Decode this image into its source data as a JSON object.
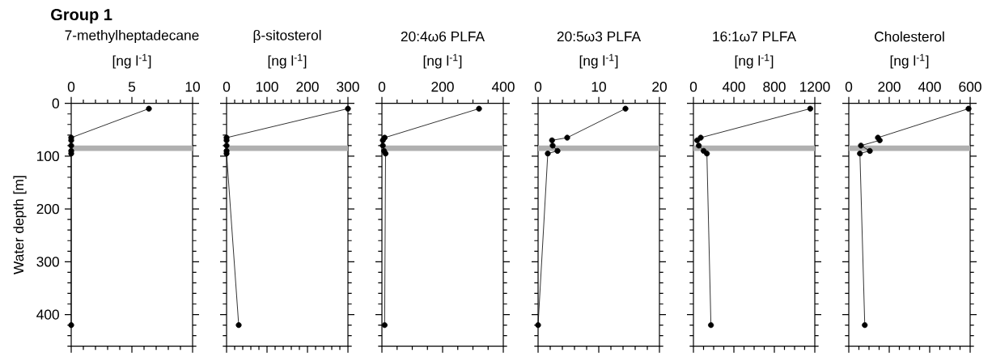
{
  "chart_data": [
    {
      "type": "line",
      "title": "7-methylheptadecane",
      "xlabel": "[ng l$^{-1}$]",
      "ylabel": "Water depth [m]",
      "annotations": [
        "**Group 1**"
      ],
      "marker": "circle",
      "series": [
        {
          "color": "#000000",
          "x": [
            6.4,
            0,
            0,
            0,
            0,
            0,
            0
          ],
          "values": [
            10,
            65,
            70,
            80,
            90,
            95,
            420
          ]
        }
      ],
      "xlim": [
        0,
        10
      ],
      "xticks": [
        0,
        {
          "value": 1,
          "label": null
        },
        {
          "value": 2,
          "label": null
        },
        {
          "value": 3,
          "label": null
        },
        {
          "value": 4,
          "label": null
        },
        5,
        {
          "value": 6,
          "label": null
        },
        {
          "value": 7,
          "label": null
        },
        {
          "value": 8,
          "label": null
        },
        {
          "value": 9,
          "label": null
        },
        10
      ],
      "ylim": [
        460,
        0
      ],
      "yticks": [
        0,
        {
          "value": 20,
          "label": null
        },
        {
          "value": 40,
          "label": null
        },
        {
          "value": 60,
          "label": null
        },
        {
          "value": 80,
          "label": null
        },
        100,
        {
          "value": 120,
          "label": null
        },
        {
          "value": 140,
          "label": null
        },
        {
          "value": 160,
          "label": null
        },
        {
          "value": 180,
          "label": null
        },
        200,
        {
          "value": 220,
          "label": null
        },
        {
          "value": 240,
          "label": null
        },
        {
          "value": 260,
          "label": null
        },
        {
          "value": 280,
          "label": null
        },
        300,
        {
          "value": 320,
          "label": null
        },
        {
          "value": 340,
          "label": null
        },
        {
          "value": 360,
          "label": null
        },
        {
          "value": 380,
          "label": null
        },
        400,
        {
          "value": 420,
          "label": null
        },
        {
          "value": 440,
          "label": null
        },
        {
          "value": 460,
          "label": null
        }
      ],
      "bands": [
        {
          "axis": "y",
          "from": 80,
          "to": 90,
          "color": "#b0b0b0"
        }
      ]
    },
    {
      "type": "line",
      "title": "β-sitosterol",
      "xlabel": "[ng l$^{-1}$]",
      "marker": "circle",
      "tick_labels": "x",
      "series": [
        {
          "color": "#000000",
          "x": [
            300,
            0,
            0,
            0,
            0,
            0,
            30
          ],
          "values": [
            10,
            65,
            70,
            80,
            90,
            95,
            420
          ]
        }
      ],
      "xlim": [
        0,
        300
      ],
      "xticks": [
        0,
        {
          "value": 20,
          "label": null
        },
        {
          "value": 40,
          "label": null
        },
        {
          "value": 60,
          "label": null
        },
        {
          "value": 80,
          "label": null
        },
        100,
        {
          "value": 120,
          "label": null
        },
        {
          "value": 140,
          "label": null
        },
        {
          "value": 160,
          "label": null
        },
        {
          "value": 180,
          "label": null
        },
        200,
        {
          "value": 220,
          "label": null
        },
        {
          "value": 240,
          "label": null
        },
        {
          "value": 260,
          "label": null
        },
        {
          "value": 280,
          "label": null
        },
        300
      ],
      "ylim": [
        460,
        0
      ],
      "yticks": [
        0,
        {
          "value": 20,
          "label": null
        },
        {
          "value": 40,
          "label": null
        },
        {
          "value": 60,
          "label": null
        },
        {
          "value": 80,
          "label": null
        },
        100,
        {
          "value": 120,
          "label": null
        },
        {
          "value": 140,
          "label": null
        },
        {
          "value": 160,
          "label": null
        },
        {
          "value": 180,
          "label": null
        },
        200,
        {
          "value": 220,
          "label": null
        },
        {
          "value": 240,
          "label": null
        },
        {
          "value": 260,
          "label": null
        },
        {
          "value": 280,
          "label": null
        },
        300,
        {
          "value": 320,
          "label": null
        },
        {
          "value": 340,
          "label": null
        },
        {
          "value": 360,
          "label": null
        },
        {
          "value": 380,
          "label": null
        },
        400,
        {
          "value": 420,
          "label": null
        },
        {
          "value": 440,
          "label": null
        },
        {
          "value": 460,
          "label": null
        }
      ],
      "bands": [
        {
          "axis": "y",
          "from": 80,
          "to": 90,
          "color": "#b0b0b0"
        }
      ]
    },
    {
      "type": "line",
      "title": "20:4ω6 PLFA",
      "xlabel": "[ng l$^{-1}$]",
      "marker": "circle",
      "tick_labels": "x",
      "series": [
        {
          "color": "#000000",
          "x": [
            320,
            9,
            3,
            3,
            7,
            12,
            9
          ],
          "values": [
            10,
            65,
            70,
            80,
            90,
            95,
            420
          ]
        }
      ],
      "xlim": [
        0,
        400
      ],
      "xticks": [
        0,
        {
          "value": 50,
          "label": null
        },
        {
          "value": 100,
          "label": null
        },
        {
          "value": 150,
          "label": null
        },
        200,
        {
          "value": 250,
          "label": null
        },
        {
          "value": 300,
          "label": null
        },
        {
          "value": 350,
          "label": null
        },
        400
      ],
      "ylim": [
        460,
        0
      ],
      "yticks": [
        0,
        {
          "value": 20,
          "label": null
        },
        {
          "value": 40,
          "label": null
        },
        {
          "value": 60,
          "label": null
        },
        {
          "value": 80,
          "label": null
        },
        100,
        {
          "value": 120,
          "label": null
        },
        {
          "value": 140,
          "label": null
        },
        {
          "value": 160,
          "label": null
        },
        {
          "value": 180,
          "label": null
        },
        200,
        {
          "value": 220,
          "label": null
        },
        {
          "value": 240,
          "label": null
        },
        {
          "value": 260,
          "label": null
        },
        {
          "value": 280,
          "label": null
        },
        300,
        {
          "value": 320,
          "label": null
        },
        {
          "value": 340,
          "label": null
        },
        {
          "value": 360,
          "label": null
        },
        {
          "value": 380,
          "label": null
        },
        400,
        {
          "value": 420,
          "label": null
        },
        {
          "value": 440,
          "label": null
        },
        {
          "value": 460,
          "label": null
        }
      ],
      "bands": [
        {
          "axis": "y",
          "from": 80,
          "to": 90,
          "color": "#b0b0b0"
        }
      ]
    },
    {
      "type": "line",
      "title": "20:5ω3 PLFA",
      "xlabel": "[ng l$^{-1}$]",
      "marker": "circle",
      "tick_labels": "x",
      "series": [
        {
          "color": "#000000",
          "x": [
            14.4,
            4.8,
            2.3,
            2.4,
            3.2,
            1.6,
            0
          ],
          "values": [
            10,
            65,
            70,
            80,
            90,
            95,
            420
          ]
        }
      ],
      "xlim": [
        0,
        20
      ],
      "xticks": [
        0,
        {
          "value": 2,
          "label": null
        },
        {
          "value": 4,
          "label": null
        },
        {
          "value": 6,
          "label": null
        },
        {
          "value": 8,
          "label": null
        },
        10,
        {
          "value": 12,
          "label": null
        },
        {
          "value": 14,
          "label": null
        },
        {
          "value": 16,
          "label": null
        },
        {
          "value": 18,
          "label": null
        },
        20
      ],
      "ylim": [
        460,
        0
      ],
      "yticks": [
        0,
        {
          "value": 20,
          "label": null
        },
        {
          "value": 40,
          "label": null
        },
        {
          "value": 60,
          "label": null
        },
        {
          "value": 80,
          "label": null
        },
        100,
        {
          "value": 120,
          "label": null
        },
        {
          "value": 140,
          "label": null
        },
        {
          "value": 160,
          "label": null
        },
        {
          "value": 180,
          "label": null
        },
        200,
        {
          "value": 220,
          "label": null
        },
        {
          "value": 240,
          "label": null
        },
        {
          "value": 260,
          "label": null
        },
        {
          "value": 280,
          "label": null
        },
        300,
        {
          "value": 320,
          "label": null
        },
        {
          "value": 340,
          "label": null
        },
        {
          "value": 360,
          "label": null
        },
        {
          "value": 380,
          "label": null
        },
        400,
        {
          "value": 420,
          "label": null
        },
        {
          "value": 440,
          "label": null
        },
        {
          "value": 460,
          "label": null
        }
      ],
      "bands": [
        {
          "axis": "y",
          "from": 80,
          "to": 90,
          "color": "#b0b0b0"
        }
      ]
    },
    {
      "type": "line",
      "title": "16:1ω7 PLFA",
      "xlabel": "[ng l$^{-1}$]",
      "marker": "circle",
      "tick_labels": "x",
      "series": [
        {
          "color": "#000000",
          "x": [
            1155,
            72,
            37,
            53,
            101,
            133,
            173
          ],
          "values": [
            10,
            65,
            70,
            80,
            90,
            95,
            420
          ]
        }
      ],
      "xlim": [
        0,
        1200
      ],
      "xticks": [
        0,
        {
          "value": 100,
          "label": null
        },
        {
          "value": 200,
          "label": null
        },
        {
          "value": 300,
          "label": null
        },
        400,
        {
          "value": 500,
          "label": null
        },
        {
          "value": 600,
          "label": null
        },
        {
          "value": 700,
          "label": null
        },
        800,
        {
          "value": 900,
          "label": null
        },
        {
          "value": 1000,
          "label": null
        },
        {
          "value": 1100,
          "label": null
        },
        1200
      ],
      "ylim": [
        460,
        0
      ],
      "yticks": [
        0,
        {
          "value": 20,
          "label": null
        },
        {
          "value": 40,
          "label": null
        },
        {
          "value": 60,
          "label": null
        },
        {
          "value": 80,
          "label": null
        },
        100,
        {
          "value": 120,
          "label": null
        },
        {
          "value": 140,
          "label": null
        },
        {
          "value": 160,
          "label": null
        },
        {
          "value": 180,
          "label": null
        },
        200,
        {
          "value": 220,
          "label": null
        },
        {
          "value": 240,
          "label": null
        },
        {
          "value": 260,
          "label": null
        },
        {
          "value": 280,
          "label": null
        },
        300,
        {
          "value": 320,
          "label": null
        },
        {
          "value": 340,
          "label": null
        },
        {
          "value": 360,
          "label": null
        },
        {
          "value": 380,
          "label": null
        },
        400,
        {
          "value": 420,
          "label": null
        },
        {
          "value": 440,
          "label": null
        },
        {
          "value": 460,
          "label": null
        }
      ],
      "bands": [
        {
          "axis": "y",
          "from": 80,
          "to": 90,
          "color": "#b0b0b0"
        }
      ]
    },
    {
      "type": "line",
      "title": "Cholesterol",
      "xlabel": "[ng l$^{-1}$]",
      "marker": "circle",
      "tick_labels": "x",
      "series": [
        {
          "color": "#000000",
          "x": [
            592,
            144,
            153,
            60,
            104,
            55,
            79
          ],
          "values": [
            10,
            65,
            70,
            80,
            90,
            95,
            420
          ]
        }
      ],
      "xlim": [
        0,
        600
      ],
      "xticks": [
        0,
        {
          "value": 50,
          "label": null
        },
        {
          "value": 100,
          "label": null
        },
        {
          "value": 150,
          "label": null
        },
        200,
        {
          "value": 250,
          "label": null
        },
        {
          "value": 300,
          "label": null
        },
        {
          "value": 350,
          "label": null
        },
        400,
        {
          "value": 450,
          "label": null
        },
        {
          "value": 500,
          "label": null
        },
        {
          "value": 550,
          "label": null
        },
        600
      ],
      "ylim": [
        460,
        0
      ],
      "yticks": [
        0,
        {
          "value": 20,
          "label": null
        },
        {
          "value": 40,
          "label": null
        },
        {
          "value": 60,
          "label": null
        },
        {
          "value": 80,
          "label": null
        },
        100,
        {
          "value": 120,
          "label": null
        },
        {
          "value": 140,
          "label": null
        },
        {
          "value": 160,
          "label": null
        },
        {
          "value": 180,
          "label": null
        },
        200,
        {
          "value": 220,
          "label": null
        },
        {
          "value": 240,
          "label": null
        },
        {
          "value": 260,
          "label": null
        },
        {
          "value": 280,
          "label": null
        },
        300,
        {
          "value": 320,
          "label": null
        },
        {
          "value": 340,
          "label": null
        },
        {
          "value": 360,
          "label": null
        },
        {
          "value": 380,
          "label": null
        },
        400,
        {
          "value": 420,
          "label": null
        },
        {
          "value": 440,
          "label": null
        },
        {
          "value": 460,
          "label": null
        }
      ],
      "bands": [
        {
          "axis": "y",
          "from": 80,
          "to": 90,
          "color": "#b0b0b0"
        }
      ]
    }
  ]
}
